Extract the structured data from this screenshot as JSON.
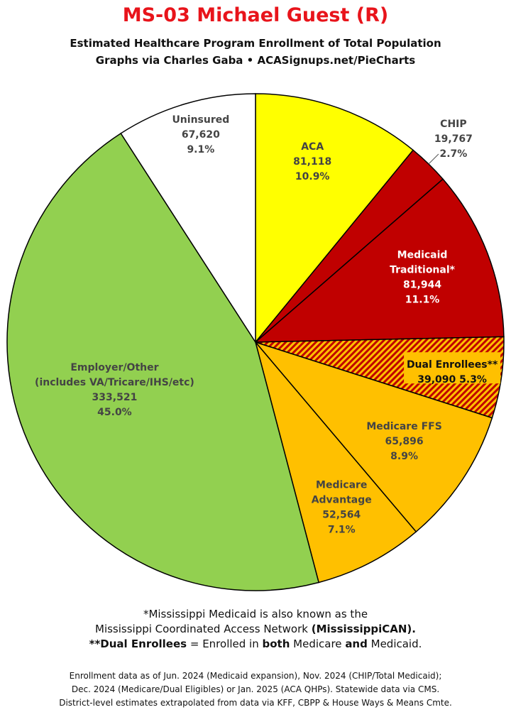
{
  "chart_data": {
    "type": "pie",
    "title": "MS-03 Michael Guest (R)",
    "subtitle_lines": [
      "Estimated Healthcare Program Enrollment of Total Population",
      "Graphs via Charles Gaba  •  ACASignups.net/PieCharts"
    ],
    "slices": [
      {
        "label": [
          "ACA"
        ],
        "value": 81118,
        "value_label": "81,118",
        "percent": 10.9,
        "percent_label": "10.9%",
        "color": "#ffff00",
        "text_color": "#444444"
      },
      {
        "label": [
          "CHIP"
        ],
        "value": 19767,
        "value_label": "19,767",
        "percent": 2.7,
        "percent_label": "2.7%",
        "color": "#c00000",
        "text_color": "#444444"
      },
      {
        "label": [
          "Medicaid",
          "Traditional*"
        ],
        "value": 81944,
        "value_label": "81,944",
        "percent": 11.1,
        "percent_label": "11.1%",
        "color": "#c00000",
        "text_color": "#ffffff"
      },
      {
        "label": [
          "Dual Enrollees**"
        ],
        "value": 39090,
        "value_label": "39,090",
        "percent": 5.3,
        "percent_label": "5.3%",
        "color": "#ffc000",
        "pattern": "hatch",
        "text_color": "#111111"
      },
      {
        "label": [
          "Medicare FFS"
        ],
        "value": 65896,
        "value_label": "65,896",
        "percent": 8.9,
        "percent_label": "8.9%",
        "color": "#ffc000",
        "text_color": "#444444"
      },
      {
        "label": [
          "Medicare",
          "Advantage"
        ],
        "value": 52564,
        "value_label": "52,564",
        "percent": 7.1,
        "percent_label": "7.1%",
        "color": "#ffc000",
        "text_color": "#444444"
      },
      {
        "label": [
          "Employer/Other",
          "(includes VA/Tricare/IHS/etc)"
        ],
        "value": 333521,
        "value_label": "333,521",
        "percent": 45.0,
        "percent_label": "45.0%",
        "color": "#92d050",
        "text_color": "#444444"
      },
      {
        "label": [
          "Uninsured"
        ],
        "value": 67620,
        "value_label": "67,620",
        "percent": 9.1,
        "percent_label": "9.1%",
        "color": "#ffffff",
        "text_color": "#444444"
      }
    ]
  },
  "footnotes": {
    "line1": "*Mississippi Medicaid is also known as the",
    "line2_a": "Mississippi Coordinated Access Network ",
    "line2_b": "(MississippiCAN).",
    "line3_a": "**Dual Enrollees",
    "line3_b": " = Enrolled in ",
    "line3_c": "both",
    "line3_d": " Medicare ",
    "line3_e": "and",
    "line3_f": " Medicaid."
  },
  "sources": [
    "Enrollment data as of Jun. 2024 (Medicaid expansion), Nov. 2024 (CHIP/Total Medicaid);",
    "Dec. 2024 (Medicare/Dual Eligibles) or Jan. 2025 (ACA QHPs). Statewide data via CMS.",
    "District-level estimates extrapolated from data via KFF, CBPP & House Ways & Means Cmte."
  ]
}
